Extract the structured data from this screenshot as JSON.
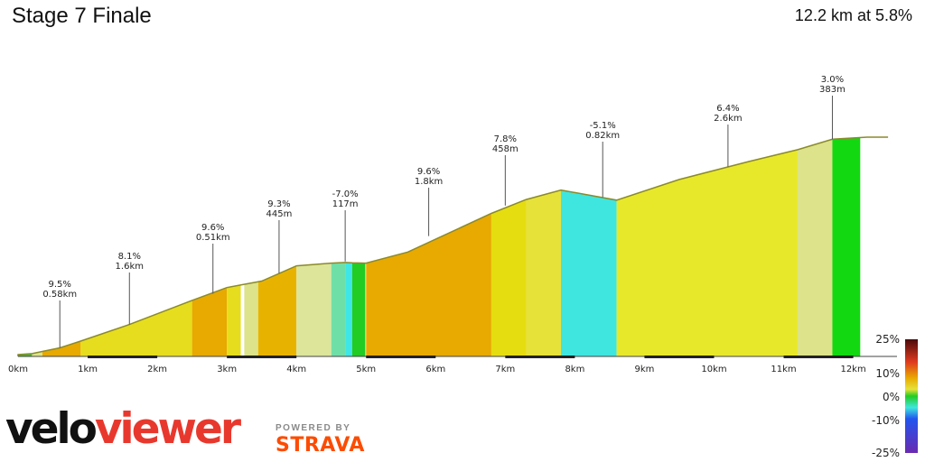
{
  "header": {
    "title": "Stage 7 Finale",
    "summary": "12.2 km at 5.8%"
  },
  "branding": {
    "logo_part1": "velo",
    "logo_part2": "viewer",
    "powered_by": "POWERED BY",
    "strava": "STRAVA"
  },
  "chart_data": {
    "type": "area",
    "xlabel": "",
    "ylabel": "",
    "xlim": [
      0,
      12.2
    ],
    "x_ticks": [
      "0km",
      "1km",
      "2km",
      "3km",
      "4km",
      "5km",
      "6km",
      "7km",
      "8km",
      "9km",
      "10km",
      "11km",
      "12km"
    ],
    "profile_x_km": [
      0,
      0.2,
      0.6,
      0.9,
      1.6,
      2.5,
      3.0,
      3.5,
      4.0,
      4.5,
      4.7,
      4.8,
      5.0,
      5.6,
      6.8,
      7.3,
      7.8,
      8.6,
      9.5,
      10.5,
      11.2,
      11.7,
      12.2,
      12.5
    ],
    "profile_y_m": [
      0,
      3,
      20,
      40,
      89,
      160,
      198,
      217,
      262,
      270,
      272,
      271,
      270,
      303,
      417,
      458,
      486,
      456,
      517,
      570,
      605,
      636,
      642,
      642
    ],
    "colors_by_range": [
      {
        "from": 0.0,
        "to": 0.2,
        "color": "#3bbf3b"
      },
      {
        "from": 0.2,
        "to": 0.35,
        "color": "#dce38a"
      },
      {
        "from": 0.35,
        "to": 0.9,
        "color": "#e8a900"
      },
      {
        "from": 0.9,
        "to": 2.5,
        "color": "#e6dd1e"
      },
      {
        "from": 2.5,
        "to": 3.0,
        "color": "#e8a900"
      },
      {
        "from": 3.0,
        "to": 3.2,
        "color": "#e6dd1e"
      },
      {
        "from": 3.2,
        "to": 3.25,
        "color": "#ffffff"
      },
      {
        "from": 3.25,
        "to": 3.45,
        "color": "#dce38a"
      },
      {
        "from": 3.45,
        "to": 4.0,
        "color": "#e8b300"
      },
      {
        "from": 4.0,
        "to": 4.5,
        "color": "#dce59a"
      },
      {
        "from": 4.5,
        "to": 4.7,
        "color": "#6fdfa8"
      },
      {
        "from": 4.7,
        "to": 4.8,
        "color": "#3ee6e6"
      },
      {
        "from": 4.8,
        "to": 4.99,
        "color": "#22cc22"
      },
      {
        "from": 5.0,
        "to": 6.8,
        "color": "#e8a900"
      },
      {
        "from": 6.8,
        "to": 7.3,
        "color": "#e6dd10"
      },
      {
        "from": 7.3,
        "to": 7.8,
        "color": "#e6e23a"
      },
      {
        "from": 7.8,
        "to": 8.6,
        "color": "#3ee6df"
      },
      {
        "from": 8.6,
        "to": 11.2,
        "color": "#e8e82a"
      },
      {
        "from": 11.2,
        "to": 11.7,
        "color": "#dce38a"
      },
      {
        "from": 11.7,
        "to": 12.1,
        "color": "#12d812"
      }
    ],
    "annotations": [
      {
        "x_km": 0.6,
        "y_m": 20,
        "gradient": "9.5%",
        "length": "0.58km"
      },
      {
        "x_km": 1.6,
        "y_m": 89,
        "gradient": "8.1%",
        "length": "1.6km"
      },
      {
        "x_km": 2.8,
        "y_m": 180,
        "gradient": "9.6%",
        "length": "0.51km"
      },
      {
        "x_km": 3.75,
        "y_m": 240,
        "gradient": "9.3%",
        "length": "445m"
      },
      {
        "x_km": 4.7,
        "y_m": 275,
        "gradient": "-7.0%",
        "length": "117m"
      },
      {
        "x_km": 5.9,
        "y_m": 350,
        "gradient": "9.6%",
        "length": "1.8km"
      },
      {
        "x_km": 7.0,
        "y_m": 440,
        "gradient": "7.8%",
        "length": "458m"
      },
      {
        "x_km": 8.4,
        "y_m": 465,
        "gradient": "-5.1%",
        "length": "0.82km"
      },
      {
        "x_km": 10.2,
        "y_m": 555,
        "gradient": "6.4%",
        "length": "2.6km"
      },
      {
        "x_km": 11.7,
        "y_m": 636,
        "gradient": "3.0%",
        "length": "383m"
      }
    ],
    "legend": {
      "position": "right",
      "labels": [
        "25%",
        "10%",
        "0%",
        "-10%",
        "-25%"
      ],
      "stops": [
        {
          "pct": 25,
          "color": "#4a0a0a"
        },
        {
          "pct": 15,
          "color": "#e03a1e"
        },
        {
          "pct": 8,
          "color": "#e8a900"
        },
        {
          "pct": 3,
          "color": "#e6e23a"
        },
        {
          "pct": 0,
          "color": "#22cc22"
        },
        {
          "pct": -5,
          "color": "#3ee6df"
        },
        {
          "pct": -10,
          "color": "#2255ee"
        },
        {
          "pct": -25,
          "color": "#6a2ab0"
        }
      ]
    }
  }
}
